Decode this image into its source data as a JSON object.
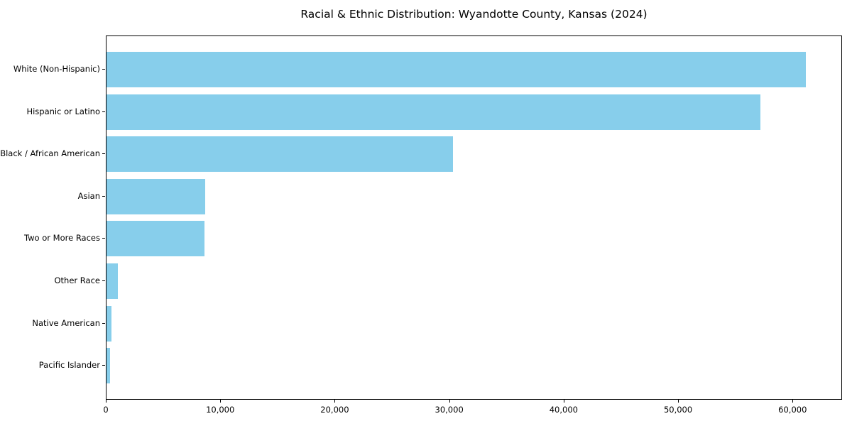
{
  "chart_data": {
    "type": "bar",
    "orientation": "horizontal",
    "title": "Racial & Ethnic Distribution: Wyandotte County, Kansas (2024)",
    "categories": [
      "White (Non-Hispanic)",
      "Hispanic or Latino",
      "Black / African American",
      "Asian",
      "Two or More Races",
      "Other Race",
      "Native American",
      "Pacific Islander"
    ],
    "values": [
      61100,
      57150,
      30300,
      8650,
      8550,
      1000,
      450,
      300
    ],
    "xlabel": "",
    "ylabel": "",
    "xlim": [
      0,
      64200
    ],
    "x_ticks": [
      0,
      10000,
      20000,
      30000,
      40000,
      50000,
      60000
    ],
    "x_tick_labels": [
      "0",
      "10,000",
      "20,000",
      "30,000",
      "40,000",
      "50,000",
      "60,000"
    ],
    "bar_color": "#87ceeb",
    "background_color": "#ffffff",
    "axis_color": "#000000",
    "grid": false,
    "legend_position": "none",
    "categories_inverted": true
  }
}
